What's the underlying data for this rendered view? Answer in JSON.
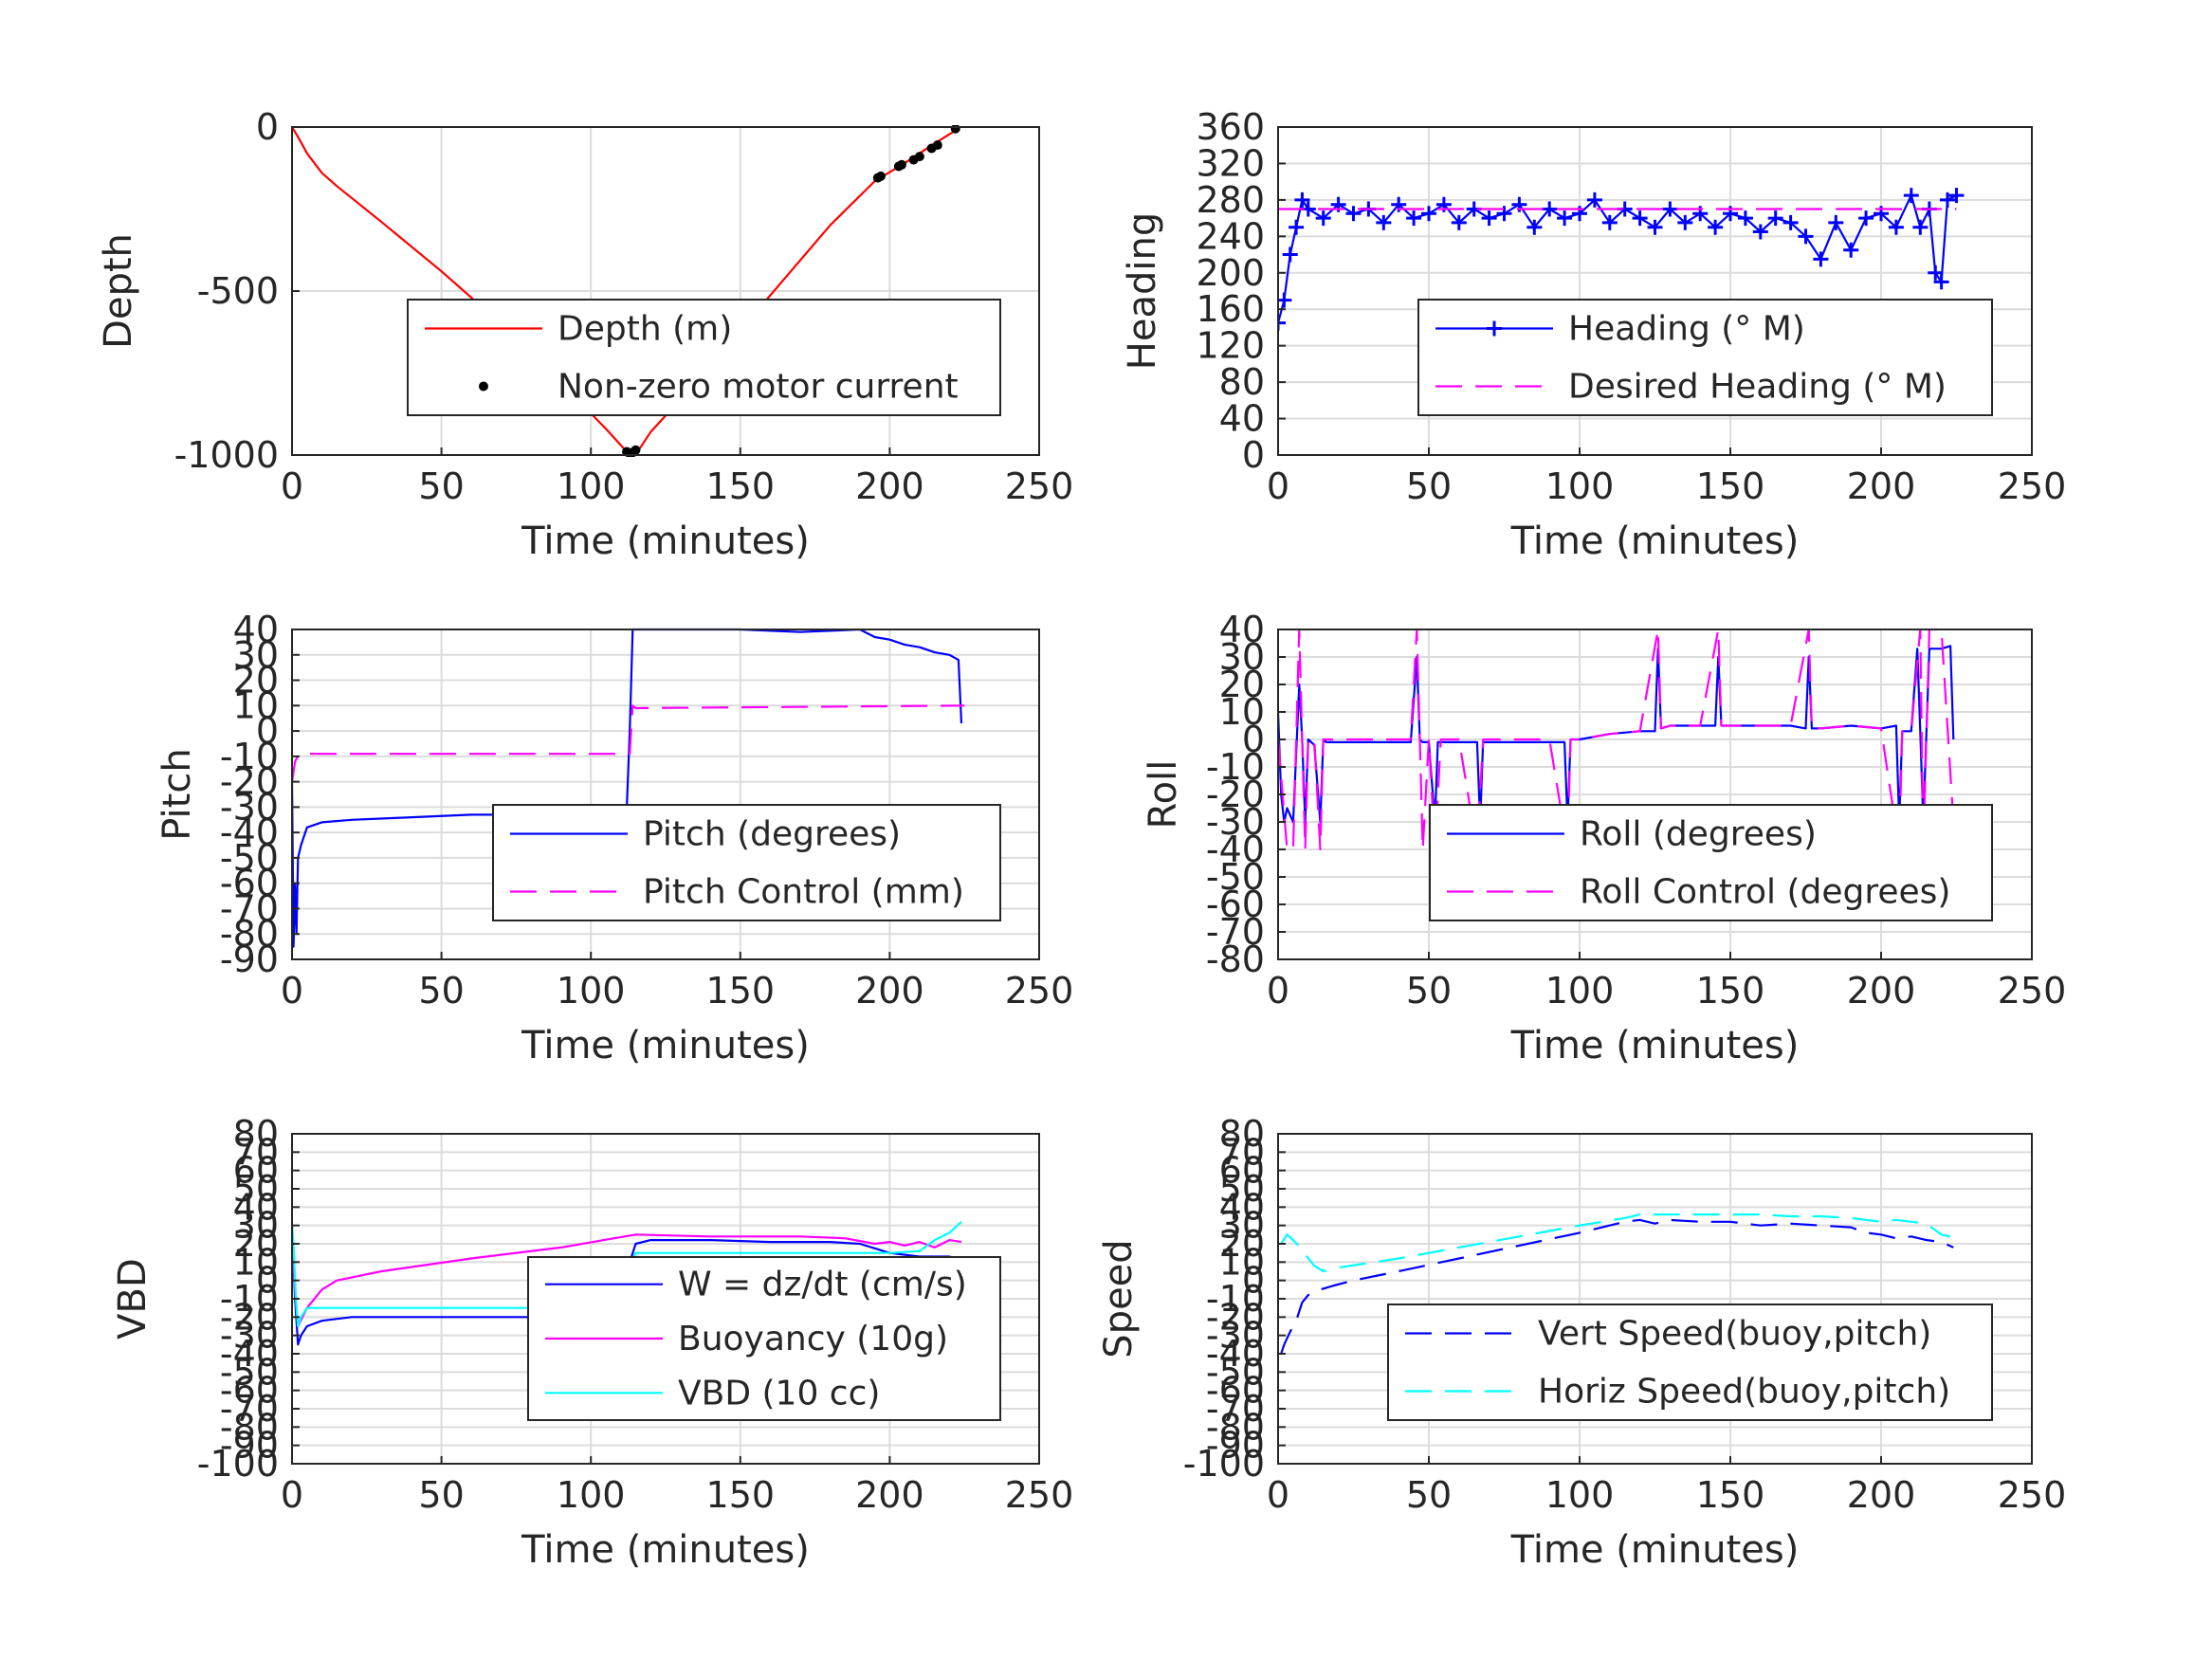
{
  "chart_data": [
    {
      "id": "depth",
      "type": "line",
      "xlabel": "Time (minutes)",
      "ylabel": "Depth",
      "xlim": [
        0,
        250
      ],
      "ylim": [
        -1000,
        0
      ],
      "xticks": [
        0,
        50,
        100,
        150,
        200,
        250
      ],
      "yticks": [
        -1000,
        -500,
        0
      ],
      "grid": true,
      "legend_position": "lower-right",
      "series": [
        {
          "name": "Depth (m)",
          "color": "#ff0000",
          "style": "solid",
          "marker": "none",
          "x": [
            0,
            2,
            5,
            10,
            15,
            30,
            50,
            70,
            90,
            105,
            112,
            114,
            116,
            120,
            135,
            150,
            165,
            180,
            195,
            205,
            215,
            223
          ],
          "y": [
            0,
            -30,
            -80,
            -140,
            -180,
            -290,
            -440,
            -600,
            -780,
            -920,
            -990,
            -995,
            -985,
            -930,
            -780,
            -620,
            -460,
            -300,
            -165,
            -110,
            -50,
            -5
          ]
        },
        {
          "name": "Non-zero motor current",
          "color": "#000000",
          "style": "none",
          "marker": "dot",
          "x": [
            112,
            113,
            114,
            115,
            196,
            197,
            203,
            204,
            208,
            210,
            214,
            216,
            222
          ],
          "y": [
            -990,
            -995,
            -992,
            -985,
            -155,
            -150,
            -120,
            -115,
            -100,
            -90,
            -65,
            -55,
            -5
          ]
        }
      ]
    },
    {
      "id": "heading",
      "type": "line",
      "xlabel": "Time (minutes)",
      "ylabel": "Heading",
      "xlim": [
        0,
        250
      ],
      "ylim": [
        0,
        360
      ],
      "xticks": [
        0,
        50,
        100,
        150,
        200,
        250
      ],
      "yticks": [
        0,
        40,
        80,
        120,
        160,
        200,
        240,
        280,
        320,
        360
      ],
      "grid": true,
      "legend_position": "lower-right",
      "series": [
        {
          "name": "Heading (° M)",
          "color": "#0000ff",
          "style": "solid",
          "marker": "plus",
          "x": [
            0,
            2,
            4,
            6,
            8,
            10,
            15,
            20,
            25,
            30,
            35,
            40,
            45,
            50,
            55,
            60,
            65,
            70,
            75,
            80,
            85,
            90,
            95,
            100,
            105,
            110,
            115,
            120,
            125,
            130,
            135,
            140,
            145,
            150,
            155,
            160,
            165,
            170,
            175,
            180,
            185,
            190,
            195,
            200,
            205,
            210,
            213,
            216,
            218,
            220,
            222,
            225
          ],
          "y": [
            145,
            170,
            220,
            250,
            280,
            270,
            260,
            275,
            265,
            270,
            255,
            275,
            260,
            265,
            275,
            255,
            270,
            260,
            265,
            275,
            250,
            270,
            260,
            265,
            280,
            255,
            270,
            260,
            250,
            270,
            255,
            265,
            250,
            265,
            260,
            245,
            260,
            255,
            240,
            215,
            255,
            225,
            260,
            265,
            250,
            285,
            250,
            270,
            200,
            190,
            280,
            285
          ]
        },
        {
          "name": "Desired Heading (° M)",
          "color": "#ff00ff",
          "style": "dashed",
          "marker": "none",
          "x": [
            0,
            225
          ],
          "y": [
            270,
            270
          ]
        }
      ]
    },
    {
      "id": "pitch",
      "type": "line",
      "xlabel": "Time (minutes)",
      "ylabel": "Pitch",
      "xlim": [
        0,
        250
      ],
      "ylim": [
        -90,
        40
      ],
      "xticks": [
        0,
        50,
        100,
        150,
        200,
        250
      ],
      "yticks": [
        -90,
        -80,
        -70,
        -60,
        -50,
        -40,
        -30,
        -20,
        -10,
        0,
        10,
        20,
        30,
        40
      ],
      "grid": true,
      "legend_position": "lower-right",
      "series": [
        {
          "name": "Pitch (degrees)",
          "color": "#0000ff",
          "style": "solid",
          "marker": "none",
          "x": [
            0,
            0.5,
            1,
            1.5,
            2,
            3,
            5,
            10,
            20,
            40,
            60,
            80,
            100,
            110,
            112,
            113,
            114,
            115,
            130,
            150,
            170,
            190,
            195,
            200,
            205,
            210,
            215,
            220,
            223,
            224
          ],
          "y": [
            -20,
            -85,
            -60,
            -80,
            -50,
            -45,
            -38,
            -36,
            -35,
            -34,
            -33,
            -33,
            -32,
            -32,
            -31,
            0,
            40,
            40,
            40,
            40,
            39,
            40,
            37,
            36,
            34,
            33,
            31,
            30,
            28,
            3
          ]
        },
        {
          "name": "Pitch Control (mm)",
          "color": "#ff00ff",
          "style": "dashed",
          "marker": "none",
          "x": [
            0,
            1,
            2,
            2.5,
            112,
            113,
            114,
            115,
            225
          ],
          "y": [
            -20,
            -12,
            -10,
            -9,
            -9,
            -9,
            10,
            9,
            10
          ]
        }
      ]
    },
    {
      "id": "roll",
      "type": "line",
      "xlabel": "Time (minutes)",
      "ylabel": "Roll",
      "xlim": [
        0,
        250
      ],
      "ylim": [
        -80,
        40
      ],
      "xticks": [
        0,
        50,
        100,
        150,
        200,
        250
      ],
      "yticks": [
        -80,
        -70,
        -60,
        -50,
        -40,
        -30,
        -20,
        -10,
        0,
        10,
        20,
        30,
        40
      ],
      "grid": true,
      "legend_position": "lower-right",
      "series": [
        {
          "name": "Roll (degrees)",
          "color": "#0000ff",
          "style": "solid",
          "marker": "none",
          "x": [
            0,
            1,
            2,
            3,
            5,
            7,
            8,
            9,
            10,
            12,
            14,
            15,
            16,
            20,
            30,
            44,
            46,
            47,
            48,
            50,
            52,
            53,
            54,
            60,
            66,
            67,
            68,
            72,
            80,
            90,
            95,
            96,
            97,
            100,
            110,
            120,
            125,
            126,
            127,
            130,
            140,
            145,
            146,
            147,
            150,
            160,
            170,
            175,
            176,
            177,
            180,
            190,
            200,
            205,
            206,
            207,
            210,
            212,
            213,
            214,
            216,
            220,
            223,
            224
          ],
          "y": [
            10,
            -20,
            -30,
            -25,
            -30,
            20,
            0,
            -30,
            0,
            -2,
            -30,
            0,
            -1,
            -1,
            -1,
            -1,
            30,
            0,
            -1,
            -1,
            -30,
            -1,
            -1,
            -1,
            -1,
            -30,
            -1,
            -1,
            -1,
            -1,
            -1,
            -30,
            0,
            0,
            2,
            3,
            3,
            33,
            4,
            5,
            5,
            5,
            30,
            5,
            5,
            5,
            5,
            4,
            30,
            4,
            4,
            5,
            4,
            5,
            -30,
            3,
            3,
            33,
            3,
            -30,
            33,
            33,
            34,
            0
          ]
        },
        {
          "name": "Roll Control (degrees)",
          "color": "#ff00ff",
          "style": "dashed",
          "marker": "none",
          "x": [
            0,
            3,
            5,
            7,
            8,
            9,
            10,
            12,
            14,
            15,
            30,
            44,
            46,
            47,
            48,
            50,
            52,
            54,
            60,
            66,
            68,
            72,
            80,
            90,
            96,
            97,
            100,
            110,
            120,
            126,
            127,
            130,
            140,
            146,
            147,
            150,
            160,
            170,
            176,
            177,
            180,
            190,
            200,
            206,
            207,
            210,
            213,
            214,
            216,
            220,
            224
          ],
          "y": [
            0,
            -40,
            -40,
            40,
            0,
            -40,
            0,
            0,
            -40,
            0,
            0,
            0,
            40,
            0,
            -40,
            0,
            -40,
            0,
            0,
            -40,
            0,
            0,
            0,
            0,
            -40,
            0,
            0,
            2,
            3,
            40,
            4,
            5,
            5,
            40,
            5,
            5,
            5,
            5,
            40,
            4,
            4,
            5,
            4,
            -40,
            3,
            3,
            40,
            -40,
            40,
            40,
            -30
          ]
        }
      ]
    },
    {
      "id": "vbd",
      "type": "line",
      "xlabel": "Time (minutes)",
      "ylabel": "VBD",
      "xlim": [
        0,
        250
      ],
      "ylim": [
        -100,
        80
      ],
      "xticks": [
        0,
        50,
        100,
        150,
        200,
        250
      ],
      "yticks": [
        -100,
        -90,
        -80,
        -70,
        -60,
        -50,
        -40,
        -30,
        -20,
        -10,
        0,
        10,
        20,
        30,
        40,
        50,
        60,
        70,
        80
      ],
      "grid": true,
      "legend_position": "lower-right",
      "series": [
        {
          "name": "W = dz/dt (cm/s)",
          "color": "#0000ff",
          "style": "solid",
          "marker": "none",
          "x": [
            0,
            1,
            2,
            3,
            5,
            10,
            20,
            50,
            80,
            100,
            110,
            112,
            113,
            115,
            120,
            140,
            160,
            180,
            190,
            200,
            210,
            220,
            224
          ],
          "y": [
            30,
            -10,
            -35,
            -30,
            -25,
            -22,
            -20,
            -20,
            -20,
            -20,
            -19,
            -18,
            10,
            20,
            22,
            22,
            21,
            21,
            20,
            15,
            13,
            13,
            10
          ]
        },
        {
          "name": "Buoyancy (10g)",
          "color": "#ff00ff",
          "style": "solid",
          "marker": "none",
          "x": [
            0,
            1,
            2,
            5,
            10,
            15,
            30,
            60,
            90,
            115,
            140,
            170,
            185,
            195,
            200,
            205,
            210,
            215,
            220,
            224
          ],
          "y": [
            25,
            -5,
            -25,
            -15,
            -5,
            0,
            5,
            12,
            18,
            25,
            24,
            24,
            23,
            20,
            21,
            19,
            21,
            18,
            22,
            21
          ]
        },
        {
          "name": "VBD (10 cc)",
          "color": "#00ffff",
          "style": "solid",
          "marker": "none",
          "x": [
            0,
            0.5,
            1,
            1.5,
            2,
            3,
            5,
            100,
            112,
            113,
            114,
            115,
            180,
            200,
            210,
            215,
            220,
            224
          ],
          "y": [
            30,
            20,
            0,
            -15,
            -25,
            -20,
            -15,
            -15,
            -15,
            5,
            12,
            15,
            15,
            15,
            16,
            22,
            26,
            32
          ]
        }
      ]
    },
    {
      "id": "speed",
      "type": "line",
      "xlabel": "Time (minutes)",
      "ylabel": "Speed",
      "xlim": [
        0,
        250
      ],
      "ylim": [
        -100,
        80
      ],
      "xticks": [
        0,
        50,
        100,
        150,
        200,
        250
      ],
      "yticks": [
        -100,
        -90,
        -80,
        -70,
        -60,
        -50,
        -40,
        -30,
        -20,
        -10,
        0,
        10,
        20,
        30,
        40,
        50,
        60,
        70,
        80
      ],
      "grid": true,
      "legend_position": "lower-right",
      "series": [
        {
          "name": "Vert Speed(buoy,pitch)",
          "color": "#0000ff",
          "style": "dashed",
          "marker": "none",
          "x": [
            1,
            2,
            4,
            6,
            8,
            10,
            12,
            14,
            16,
            18,
            25,
            40,
            60,
            80,
            100,
            115,
            120,
            125,
            130,
            140,
            150,
            160,
            170,
            180,
            190,
            195,
            200,
            205,
            210,
            215,
            220,
            224
          ],
          "y": [
            -40,
            -35,
            -28,
            -22,
            -12,
            -8,
            -6,
            -5,
            -4,
            -3,
            0,
            5,
            12,
            19,
            26,
            32,
            33,
            31,
            33,
            32,
            32,
            30,
            31,
            30,
            29,
            26,
            25,
            23,
            24,
            22,
            21,
            18
          ]
        },
        {
          "name": "Horiz Speed(buoy,pitch)",
          "color": "#00ffff",
          "style": "dashed",
          "marker": "none",
          "x": [
            1,
            3,
            5,
            8,
            10,
            12,
            15,
            20,
            40,
            60,
            80,
            100,
            115,
            120,
            125,
            130,
            140,
            150,
            160,
            170,
            180,
            190,
            195,
            200,
            205,
            210,
            215,
            220,
            223
          ],
          "y": [
            20,
            25,
            22,
            17,
            12,
            8,
            5,
            7,
            12,
            18,
            24,
            30,
            34,
            36,
            36,
            36,
            36,
            36,
            36,
            35,
            35,
            34,
            33,
            32,
            33,
            32,
            31,
            25,
            24
          ]
        }
      ]
    }
  ]
}
